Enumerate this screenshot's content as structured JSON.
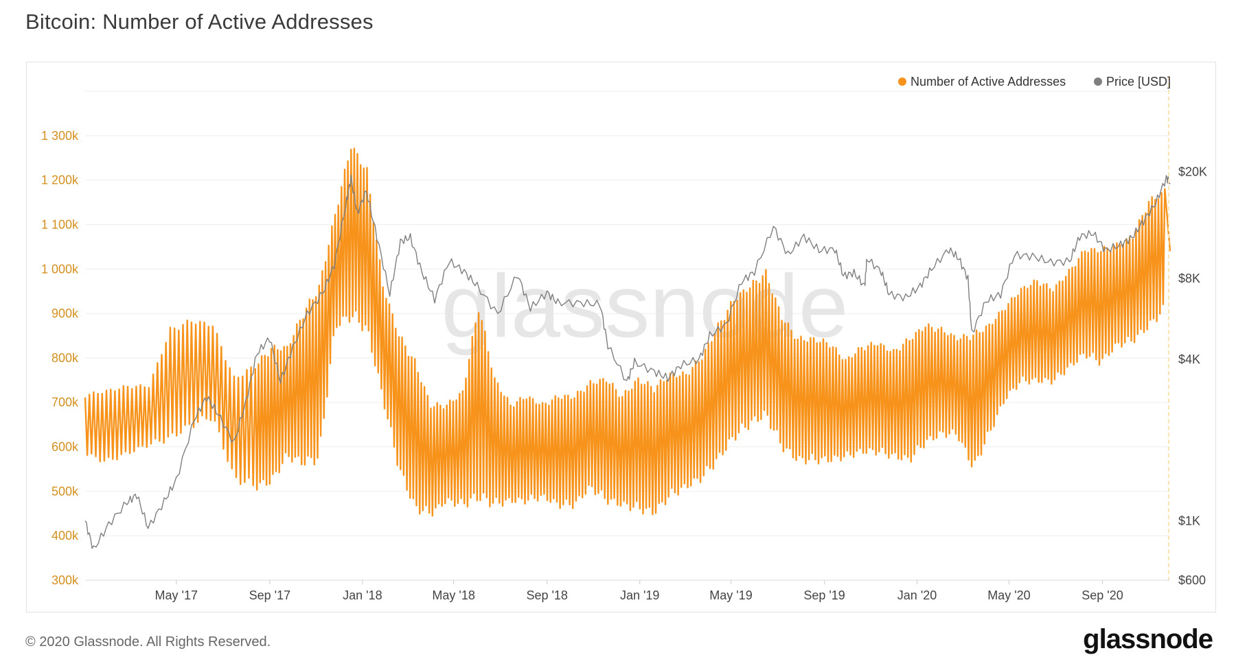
{
  "title": "Bitcoin: Number of Active Addresses",
  "footer": {
    "copyright": "© 2020 Glassnode. All Rights Reserved.",
    "logo": "glassnode"
  },
  "watermark": "glassnode",
  "legend": [
    {
      "label": "Number of Active Addresses",
      "color": "#f7931a"
    },
    {
      "label": "Price [USD]",
      "color": "#7f7f7f"
    }
  ],
  "chart_data": {
    "type": "line",
    "x_start": "2017-01-01",
    "x_end": "2020-11-29",
    "x_ticks": [
      {
        "date": "2017-05-01",
        "label": "May '17"
      },
      {
        "date": "2017-09-01",
        "label": "Sep '17"
      },
      {
        "date": "2018-01-01",
        "label": "Jan '18"
      },
      {
        "date": "2018-05-01",
        "label": "May '18"
      },
      {
        "date": "2018-09-01",
        "label": "Sep '18"
      },
      {
        "date": "2019-01-01",
        "label": "Jan '19"
      },
      {
        "date": "2019-05-01",
        "label": "May '19"
      },
      {
        "date": "2019-09-01",
        "label": "Sep '19"
      },
      {
        "date": "2020-01-01",
        "label": "Jan '20"
      },
      {
        "date": "2020-05-01",
        "label": "May '20"
      },
      {
        "date": "2020-09-01",
        "label": "Sep '20"
      }
    ],
    "left_axis": {
      "ticks": [
        {
          "value": 300000,
          "label": "300k"
        },
        {
          "value": 400000,
          "label": "400k"
        },
        {
          "value": 500000,
          "label": "500k"
        },
        {
          "value": 600000,
          "label": "600k"
        },
        {
          "value": 700000,
          "label": "700k"
        },
        {
          "value": 800000,
          "label": "800k"
        },
        {
          "value": 900000,
          "label": "900k"
        },
        {
          "value": 1000000,
          "label": "1 000k"
        },
        {
          "value": 1100000,
          "label": "1 100k"
        },
        {
          "value": 1200000,
          "label": "1 200k"
        },
        {
          "value": 1300000,
          "label": "1 300k"
        }
      ],
      "range": [
        300000,
        1400000
      ],
      "color": "#d4901f"
    },
    "right_axis": {
      "scale": "log",
      "ticks": [
        {
          "value": 600,
          "label": "$600"
        },
        {
          "value": 1000,
          "label": "$1K"
        },
        {
          "value": 4000,
          "label": "$4K"
        },
        {
          "value": 8000,
          "label": "$8K"
        },
        {
          "value": 20000,
          "label": "$20K"
        }
      ],
      "range": [
        600,
        40000
      ]
    },
    "grid": true,
    "legend_position": "top-right",
    "series": [
      {
        "name": "Number of Active Addresses",
        "color": "#f7931a",
        "sampling": "weekly high/low",
        "points": [
          [
            "2017-01-01",
            720000,
            580000
          ],
          [
            "2017-01-29",
            730000,
            560000
          ],
          [
            "2017-02-26",
            740000,
            580000
          ],
          [
            "2017-03-26",
            740000,
            600000
          ],
          [
            "2017-04-23",
            870000,
            610000
          ],
          [
            "2017-05-21",
            890000,
            640000
          ],
          [
            "2017-06-18",
            880000,
            660000
          ],
          [
            "2017-07-16",
            760000,
            520000
          ],
          [
            "2017-08-13",
            790000,
            500000
          ],
          [
            "2017-09-03",
            830000,
            510000
          ],
          [
            "2017-09-24",
            830000,
            570000
          ],
          [
            "2017-10-15",
            910000,
            550000
          ],
          [
            "2017-11-05",
            970000,
            560000
          ],
          [
            "2017-11-26",
            1130000,
            860000
          ],
          [
            "2017-12-17",
            1290000,
            880000
          ],
          [
            "2018-01-07",
            1230000,
            850000
          ],
          [
            "2018-01-28",
            970000,
            700000
          ],
          [
            "2018-02-18",
            860000,
            540000
          ],
          [
            "2018-03-11",
            800000,
            450000
          ],
          [
            "2018-04-01",
            700000,
            440000
          ],
          [
            "2018-04-22",
            700000,
            470000
          ],
          [
            "2018-05-13",
            730000,
            460000
          ],
          [
            "2018-06-03",
            930000,
            470000
          ],
          [
            "2018-06-24",
            760000,
            460000
          ],
          [
            "2018-07-15",
            700000,
            470000
          ],
          [
            "2018-08-05",
            720000,
            470000
          ],
          [
            "2018-08-26",
            700000,
            480000
          ],
          [
            "2018-09-16",
            720000,
            460000
          ],
          [
            "2018-10-07",
            720000,
            460000
          ],
          [
            "2018-10-28",
            750000,
            500000
          ],
          [
            "2018-11-18",
            760000,
            470000
          ],
          [
            "2018-12-09",
            720000,
            460000
          ],
          [
            "2018-12-30",
            760000,
            450000
          ],
          [
            "2019-01-20",
            740000,
            440000
          ],
          [
            "2019-02-10",
            770000,
            480000
          ],
          [
            "2019-03-03",
            770000,
            500000
          ],
          [
            "2019-03-24",
            810000,
            520000
          ],
          [
            "2019-04-14",
            880000,
            560000
          ],
          [
            "2019-05-05",
            940000,
            610000
          ],
          [
            "2019-05-26",
            970000,
            640000
          ],
          [
            "2019-06-16",
            1000000,
            660000
          ],
          [
            "2019-07-07",
            900000,
            590000
          ],
          [
            "2019-07-28",
            850000,
            560000
          ],
          [
            "2019-08-18",
            850000,
            560000
          ],
          [
            "2019-09-08",
            840000,
            560000
          ],
          [
            "2019-09-29",
            800000,
            570000
          ],
          [
            "2019-10-20",
            830000,
            580000
          ],
          [
            "2019-11-10",
            840000,
            580000
          ],
          [
            "2019-12-01",
            820000,
            570000
          ],
          [
            "2019-12-22",
            850000,
            560000
          ],
          [
            "2020-01-12",
            880000,
            600000
          ],
          [
            "2020-02-02",
            870000,
            620000
          ],
          [
            "2020-02-23",
            850000,
            620000
          ],
          [
            "2020-03-15",
            860000,
            540000
          ],
          [
            "2020-04-05",
            880000,
            620000
          ],
          [
            "2020-04-26",
            920000,
            700000
          ],
          [
            "2020-05-17",
            960000,
            740000
          ],
          [
            "2020-06-07",
            980000,
            740000
          ],
          [
            "2020-06-28",
            960000,
            740000
          ],
          [
            "2020-07-19",
            1000000,
            770000
          ],
          [
            "2020-08-09",
            1050000,
            800000
          ],
          [
            "2020-08-30",
            1050000,
            780000
          ],
          [
            "2020-09-20",
            1060000,
            820000
          ],
          [
            "2020-10-11",
            1080000,
            830000
          ],
          [
            "2020-11-01",
            1160000,
            860000
          ],
          [
            "2020-11-22",
            1180000,
            900000
          ]
        ]
      },
      {
        "name": "Price [USD]",
        "color": "#7f7f7f",
        "points": [
          [
            "2017-01-01",
            1000
          ],
          [
            "2017-01-12",
            780
          ],
          [
            "2017-02-01",
            970
          ],
          [
            "2017-02-25",
            1170
          ],
          [
            "2017-03-10",
            1250
          ],
          [
            "2017-03-25",
            940
          ],
          [
            "2017-04-15",
            1180
          ],
          [
            "2017-05-01",
            1420
          ],
          [
            "2017-05-25",
            2400
          ],
          [
            "2017-06-10",
            2900
          ],
          [
            "2017-06-25",
            2500
          ],
          [
            "2017-07-16",
            1950
          ],
          [
            "2017-08-01",
            2800
          ],
          [
            "2017-08-15",
            4200
          ],
          [
            "2017-09-01",
            4800
          ],
          [
            "2017-09-15",
            3300
          ],
          [
            "2017-10-01",
            4400
          ],
          [
            "2017-10-20",
            5900
          ],
          [
            "2017-11-10",
            7100
          ],
          [
            "2017-11-25",
            9000
          ],
          [
            "2017-12-10",
            15000
          ],
          [
            "2017-12-17",
            19000
          ],
          [
            "2017-12-25",
            14000
          ],
          [
            "2018-01-06",
            17000
          ],
          [
            "2018-01-20",
            11500
          ],
          [
            "2018-02-06",
            7000
          ],
          [
            "2018-02-20",
            11000
          ],
          [
            "2018-03-05",
            11400
          ],
          [
            "2018-03-20",
            8500
          ],
          [
            "2018-04-06",
            6700
          ],
          [
            "2018-04-25",
            9300
          ],
          [
            "2018-05-15",
            8500
          ],
          [
            "2018-06-01",
            7500
          ],
          [
            "2018-06-28",
            5900
          ],
          [
            "2018-07-24",
            8300
          ],
          [
            "2018-08-10",
            6200
          ],
          [
            "2018-09-01",
            7100
          ],
          [
            "2018-09-15",
            6500
          ],
          [
            "2018-10-15",
            6500
          ],
          [
            "2018-11-10",
            6400
          ],
          [
            "2018-11-20",
            4500
          ],
          [
            "2018-12-15",
            3300
          ],
          [
            "2018-12-25",
            3900
          ],
          [
            "2019-01-20",
            3600
          ],
          [
            "2019-02-07",
            3400
          ],
          [
            "2019-02-24",
            3800
          ],
          [
            "2019-03-20",
            4000
          ],
          [
            "2019-04-03",
            4900
          ],
          [
            "2019-04-25",
            5400
          ],
          [
            "2019-05-15",
            7800
          ],
          [
            "2019-06-01",
            8500
          ],
          [
            "2019-06-26",
            12500
          ],
          [
            "2019-07-15",
            9800
          ],
          [
            "2019-08-05",
            11500
          ],
          [
            "2019-08-25",
            10200
          ],
          [
            "2019-09-15",
            10300
          ],
          [
            "2019-09-26",
            8200
          ],
          [
            "2019-10-10",
            8400
          ],
          [
            "2019-10-24",
            7500
          ],
          [
            "2019-10-27",
            9500
          ],
          [
            "2019-11-15",
            8500
          ],
          [
            "2019-11-25",
            7000
          ],
          [
            "2019-12-17",
            6800
          ],
          [
            "2020-01-05",
            7500
          ],
          [
            "2020-01-20",
            8700
          ],
          [
            "2020-02-12",
            10300
          ],
          [
            "2020-02-25",
            9500
          ],
          [
            "2020-03-08",
            8000
          ],
          [
            "2020-03-13",
            5000
          ],
          [
            "2020-04-01",
            6600
          ],
          [
            "2020-04-20",
            7000
          ],
          [
            "2020-05-08",
            9800
          ],
          [
            "2020-06-01",
            9700
          ],
          [
            "2020-06-25",
            9200
          ],
          [
            "2020-07-20",
            9300
          ],
          [
            "2020-08-02",
            11500
          ],
          [
            "2020-08-20",
            11800
          ],
          [
            "2020-09-05",
            10200
          ],
          [
            "2020-09-25",
            10700
          ],
          [
            "2020-10-10",
            11400
          ],
          [
            "2020-10-25",
            13100
          ],
          [
            "2020-11-10",
            15300
          ],
          [
            "2020-11-24",
            19000
          ],
          [
            "2020-11-29",
            18200
          ]
        ]
      }
    ]
  }
}
